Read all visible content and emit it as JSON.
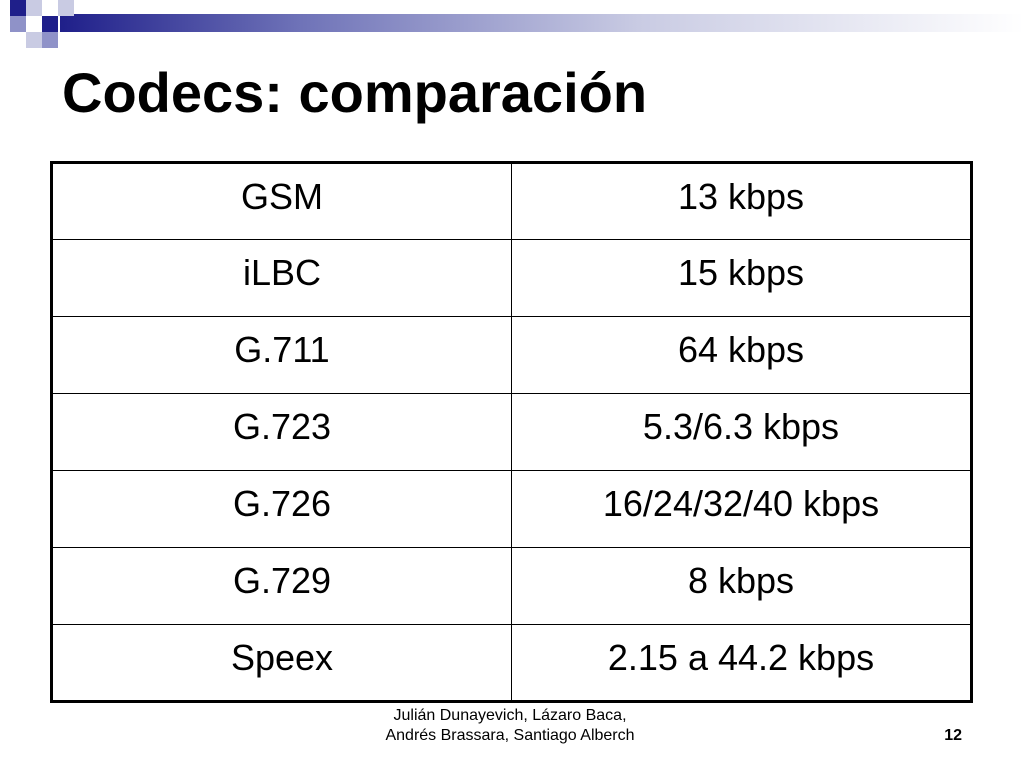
{
  "slide": {
    "title": "Codecs: comparación",
    "rows": [
      {
        "codec": "GSM",
        "rate": "13 kbps"
      },
      {
        "codec": "iLBC",
        "rate": "15 kbps"
      },
      {
        "codec": "G.711",
        "rate": "64 kbps"
      },
      {
        "codec": "G.723",
        "rate": "5.3/6.3 kbps"
      },
      {
        "codec": "G.726",
        "rate": "16/24/32/40 kbps"
      },
      {
        "codec": "G.729",
        "rate": "8 kbps"
      },
      {
        "codec": "Speex",
        "rate": "2.15 a 44.2 kbps"
      }
    ],
    "footer": {
      "credit_line1": "Julián Dunayevich, Lázaro Baca,",
      "credit_line2": "Andrés Brassara, Santiago Alberch",
      "page_number": "12"
    }
  }
}
